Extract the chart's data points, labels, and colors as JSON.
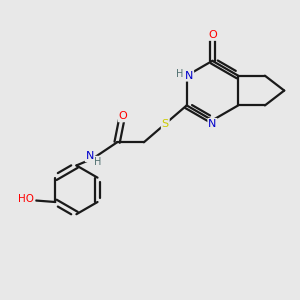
{
  "bg_color": "#e8e8e8",
  "bond_color": "#1a1a1a",
  "atom_colors": {
    "O": "#ff0000",
    "N": "#0000cc",
    "S": "#cccc00",
    "H": "#507070",
    "C": "#1a1a1a"
  }
}
